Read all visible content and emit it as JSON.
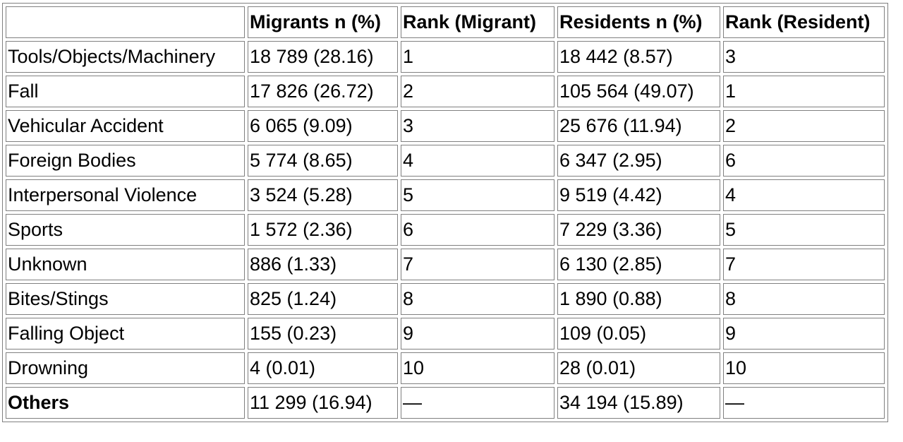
{
  "table": {
    "headers": [
      "",
      "Migrants n (%)",
      "Rank (Migrant)",
      "Residents n (%)",
      "Rank (Resident)"
    ],
    "rows": [
      {
        "mechanism": "Tools/Objects/Machinery",
        "migrants": "18 789 (28.16)",
        "rank_migrant": "1",
        "residents": "18 442 (8.57)",
        "rank_resident": "3"
      },
      {
        "mechanism": "Fall",
        "migrants": "17 826 (26.72)",
        "rank_migrant": "2",
        "residents": "105 564 (49.07)",
        "rank_resident": "1"
      },
      {
        "mechanism": "Vehicular Accident",
        "migrants": "6 065 (9.09)",
        "rank_migrant": "3",
        "residents": "25 676 (11.94)",
        "rank_resident": "2"
      },
      {
        "mechanism": "Foreign Bodies",
        "migrants": "5 774 (8.65)",
        "rank_migrant": "4",
        "residents": "6 347 (2.95)",
        "rank_resident": "6"
      },
      {
        "mechanism": "Interpersonal Violence",
        "migrants": "3 524 (5.28)",
        "rank_migrant": "5",
        "residents": "9 519 (4.42)",
        "rank_resident": "4"
      },
      {
        "mechanism": "Sports",
        "migrants": "1 572 (2.36)",
        "rank_migrant": "6",
        "residents": "7 229 (3.36)",
        "rank_resident": "5"
      },
      {
        "mechanism": "Unknown",
        "migrants": "886 (1.33)",
        "rank_migrant": "7",
        "residents": "6 130 (2.85)",
        "rank_resident": "7"
      },
      {
        "mechanism": "Bites/Stings",
        "migrants": "825 (1.24)",
        "rank_migrant": "8",
        "residents": "1 890 (0.88)",
        "rank_resident": "8"
      },
      {
        "mechanism": "Falling Object",
        "migrants": "155 (0.23)",
        "rank_migrant": "9",
        "residents": "109 (0.05)",
        "rank_resident": "9"
      },
      {
        "mechanism": "Drowning",
        "migrants": "4 (0.01)",
        "rank_migrant": "10",
        "residents": "28 (0.01)",
        "rank_resident": "10"
      },
      {
        "mechanism": "Others",
        "migrants": "11 299 (16.94)",
        "rank_migrant": "—",
        "residents": "34 194 (15.89)",
        "rank_resident": "—"
      }
    ]
  }
}
